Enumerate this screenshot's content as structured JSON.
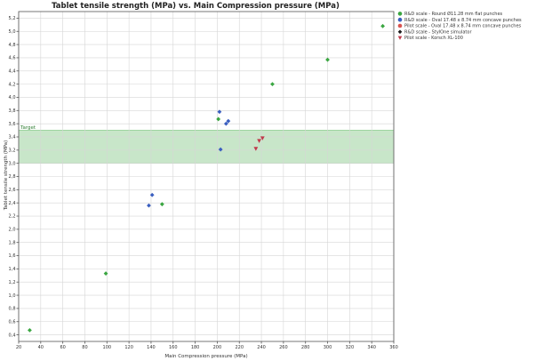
{
  "chart_data": {
    "type": "scatter",
    "title": "Tablet tensile strength (MPa) vs. Main Compression pressure (MPa)",
    "xlabel": "Main Compression pressure (MPa)",
    "ylabel": "Tablet tensile strength (MPa)",
    "xlim": [
      20,
      360
    ],
    "ylim": [
      0.3,
      5.3
    ],
    "xticks": [
      20,
      40,
      60,
      80,
      100,
      120,
      140,
      160,
      180,
      200,
      220,
      240,
      260,
      280,
      300,
      320,
      340,
      360
    ],
    "yticks": [
      0.4,
      0.6,
      0.8,
      1.0,
      1.2,
      1.4,
      1.6,
      1.8,
      2.0,
      2.2,
      2.4,
      2.6,
      2.8,
      3.0,
      3.2,
      3.4,
      3.6,
      3.8,
      4.0,
      4.2,
      4.4,
      4.6,
      4.8,
      5.0,
      5.2
    ],
    "grid": true,
    "legend_placement": "top-right",
    "target_band": {
      "label": "Target",
      "ymin": 3.0,
      "ymax": 3.5,
      "color": "#c8e6c9"
    },
    "series": [
      {
        "name": "R&D scale - Round Ø11.28 mm flat punches",
        "marker": "diamond",
        "color": "#3aa641",
        "points": [
          {
            "x": 30,
            "y": 0.47
          },
          {
            "x": 99,
            "y": 1.33
          },
          {
            "x": 150,
            "y": 2.38
          },
          {
            "x": 201,
            "y": 3.67
          },
          {
            "x": 250,
            "y": 4.2
          },
          {
            "x": 300,
            "y": 4.57
          },
          {
            "x": 350,
            "y": 5.08
          }
        ]
      },
      {
        "name": "R&D scale - Oval 17.48 x 8.74 mm concave punches",
        "marker": "diamond",
        "color": "#3b5fc0",
        "points": [
          {
            "x": 138,
            "y": 2.36
          },
          {
            "x": 141,
            "y": 2.52
          },
          {
            "x": 202,
            "y": 3.78
          },
          {
            "x": 203,
            "y": 3.21
          },
          {
            "x": 208,
            "y": 3.6
          },
          {
            "x": 210,
            "y": 3.64
          }
        ]
      },
      {
        "name": "Pilot scale - Oval 17.48 x 8.74 mm concave punches",
        "marker": "diamond",
        "color": "#d9534f",
        "points": []
      },
      {
        "name": "R&D scale - StylOne simulator",
        "marker": "diamond",
        "color": "#1a1a1a",
        "points": []
      },
      {
        "name": "Pilot scale - Korsch XL-100",
        "marker": "triangle-down",
        "color": "#c0394b",
        "points": [
          {
            "x": 235,
            "y": 3.22
          },
          {
            "x": 238,
            "y": 3.34
          },
          {
            "x": 241,
            "y": 3.38
          }
        ]
      }
    ]
  }
}
